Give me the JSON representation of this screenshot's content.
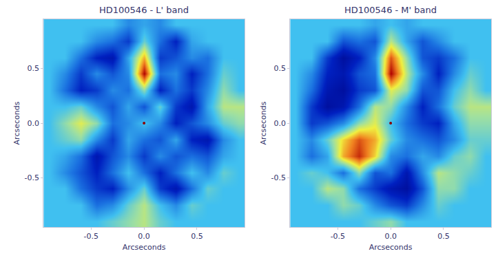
{
  "chart_data": [
    {
      "type": "heatmap",
      "title": "HD100546 - L' band",
      "x_label": "Arcseconds",
      "y_label": "Arcseconds",
      "x": [
        -0.9,
        -0.75,
        -0.6,
        -0.45,
        -0.3,
        -0.15,
        0,
        0.15,
        0.3,
        0.45,
        0.6,
        0.75,
        0.9
      ],
      "y": [
        -0.9,
        -0.75,
        -0.6,
        -0.45,
        -0.3,
        -0.15,
        0,
        0.15,
        0.3,
        0.45,
        0.6,
        0.75,
        0.9
      ],
      "z": [
        [
          0,
          0,
          0,
          0,
          0.1,
          0.2,
          0.3,
          0.1,
          0,
          0,
          0,
          0,
          0
        ],
        [
          0,
          0,
          0,
          -0.3,
          -0.2,
          0.1,
          0.3,
          0.0,
          -0.2,
          0.1,
          0,
          0,
          0
        ],
        [
          0,
          0,
          -0.3,
          -0.5,
          -0.6,
          -0.2,
          0.1,
          -0.5,
          -0.7,
          -0.3,
          0.1,
          0,
          0
        ],
        [
          0,
          -0.2,
          -0.4,
          -0.6,
          -0.3,
          0.0,
          -0.3,
          -0.6,
          -0.3,
          0.0,
          -0.2,
          0.1,
          0
        ],
        [
          0,
          -0.1,
          -0.3,
          -0.7,
          -0.4,
          -0.2,
          -0.5,
          -0.2,
          -0.4,
          -0.3,
          -0.4,
          -0.1,
          0
        ],
        [
          0,
          0.1,
          0.2,
          -0.2,
          -0.5,
          -0.1,
          -0.3,
          -0.4,
          -0.1,
          -0.6,
          -0.7,
          -0.2,
          0
        ],
        [
          0,
          0.2,
          0.4,
          0.2,
          -0.3,
          -0.2,
          0,
          -0.2,
          -0.6,
          -0.4,
          -0.2,
          0.1,
          0.2
        ],
        [
          0,
          0,
          0.1,
          -0.2,
          -0.4,
          -0.1,
          -0.4,
          0.1,
          -0.5,
          -0.7,
          -0.1,
          0.3,
          0.3
        ],
        [
          0,
          -0.3,
          -0.6,
          -0.5,
          -0.2,
          -0.3,
          0.2,
          -0.6,
          -0.3,
          -0.5,
          -0.2,
          0.2,
          0
        ],
        [
          0,
          -0.2,
          -0.5,
          -0.2,
          -0.4,
          -0.2,
          1.0,
          -0.3,
          -0.2,
          -0.6,
          -0.3,
          0.1,
          0
        ],
        [
          0,
          0,
          -0.3,
          -0.6,
          -0.7,
          -0.1,
          0.6,
          -0.5,
          -0.4,
          -0.2,
          -0.3,
          0,
          0
        ],
        [
          0,
          0,
          0,
          -0.2,
          -0.3,
          -0.5,
          0.1,
          -0.3,
          -0.6,
          -0.1,
          0,
          0,
          0
        ],
        [
          0,
          0,
          0,
          0,
          0,
          -0.2,
          -0.1,
          -0.2,
          0,
          0,
          0,
          0,
          0
        ]
      ],
      "zlim": [
        -1,
        1
      ],
      "points": {
        "x": [
          0
        ],
        "y": [
          0
        ]
      },
      "xlim": [
        -0.95,
        0.95
      ],
      "ylim": [
        -0.95,
        0.95
      ],
      "xticks": [
        -0.5,
        {
          "value": 0,
          "label": "0.0"
        },
        0.5
      ],
      "yticks": [
        -0.5,
        {
          "value": 0,
          "label": "0.0"
        },
        0.5
      ]
    },
    {
      "type": "heatmap",
      "title": "HD100546 - M' band",
      "x_label": "Arcseconds",
      "y_label": "Arcseconds",
      "x": [
        -0.9,
        -0.75,
        -0.6,
        -0.45,
        -0.3,
        -0.15,
        0,
        0.15,
        0.3,
        0.45,
        0.6,
        0.75,
        0.9
      ],
      "y": [
        -0.9,
        -0.75,
        -0.6,
        -0.45,
        -0.3,
        -0.15,
        0,
        0.15,
        0.3,
        0.45,
        0.6,
        0.75,
        0.9
      ],
      "z": [
        [
          0,
          0,
          0,
          0,
          0,
          0.1,
          0.2,
          0,
          0,
          0,
          0,
          0,
          0
        ],
        [
          0,
          0,
          0,
          0.2,
          0.1,
          -0.2,
          -0.4,
          -0.5,
          -0.2,
          0.1,
          0,
          0,
          0
        ],
        [
          0,
          0,
          0.3,
          0.2,
          -0.3,
          -0.5,
          -0.7,
          -0.8,
          -0.4,
          0.2,
          0.2,
          0,
          0
        ],
        [
          0,
          0.1,
          0.0,
          -0.3,
          0.2,
          -0.4,
          -0.3,
          -0.7,
          -0.2,
          0.3,
          0.2,
          0.1,
          0
        ],
        [
          0,
          -0.3,
          -0.1,
          0.6,
          0.9,
          0.5,
          -0.2,
          -0.3,
          -0.1,
          -0.2,
          0.1,
          0.2,
          0
        ],
        [
          0,
          -0.2,
          0.1,
          0.5,
          0.8,
          0.6,
          0.1,
          -0.2,
          -0.3,
          -0.4,
          -0.2,
          0.1,
          0.1
        ],
        [
          0,
          -0.5,
          -0.4,
          -0.2,
          0.2,
          0.4,
          0,
          -0.3,
          -0.5,
          -0.6,
          -0.1,
          0.2,
          0.2
        ],
        [
          0,
          -0.5,
          -0.8,
          -0.7,
          -0.3,
          0.3,
          0.2,
          -0.2,
          -0.6,
          -0.3,
          0.1,
          0.3,
          0.3
        ],
        [
          0,
          -0.3,
          -0.7,
          -0.8,
          -0.5,
          -0.4,
          0.4,
          0.2,
          -0.4,
          -0.4,
          0.0,
          0.2,
          0
        ],
        [
          0,
          -0.2,
          -0.6,
          -0.7,
          -0.4,
          -0.3,
          1.0,
          0.3,
          -0.2,
          -0.6,
          -0.2,
          0.1,
          0
        ],
        [
          0,
          0,
          -0.5,
          -0.8,
          -0.6,
          -0.2,
          0.8,
          0.2,
          -0.4,
          -0.5,
          -0.3,
          0,
          0
        ],
        [
          0,
          0,
          0,
          -0.4,
          -0.3,
          -0.4,
          0.3,
          -0.1,
          -0.4,
          -0.2,
          0,
          0,
          0
        ],
        [
          0,
          0,
          0,
          0,
          0,
          -0.1,
          0.0,
          -0.1,
          0,
          0,
          0,
          0,
          0
        ]
      ],
      "zlim": [
        -1,
        1
      ],
      "points": {
        "x": [
          0
        ],
        "y": [
          0
        ]
      },
      "xlim": [
        -0.95,
        0.95
      ],
      "ylim": [
        -0.95,
        0.95
      ],
      "xticks": [
        -0.5,
        {
          "value": 0,
          "label": "0.0"
        },
        0.5
      ],
      "yticks": [
        -0.5,
        {
          "value": 0,
          "label": "0.0"
        },
        0.5
      ]
    }
  ]
}
